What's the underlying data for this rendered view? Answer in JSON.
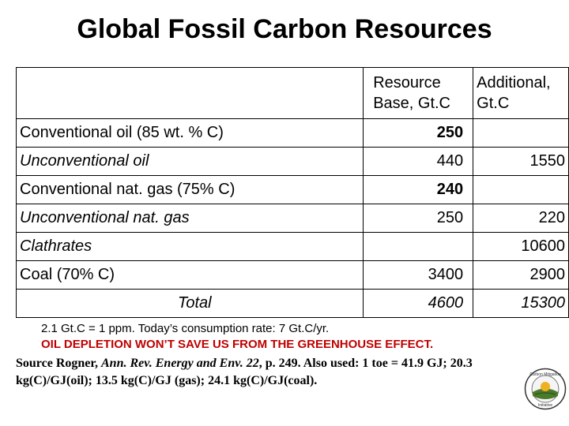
{
  "title": "Global Fossil Carbon Resources",
  "table": {
    "header": {
      "col1": "Resource\nBase, Gt.C",
      "col2": "Additional,\nGt.C"
    },
    "rows": [
      {
        "label": "Conventional oil (85 wt. % C)",
        "base": "250",
        "additional": ""
      },
      {
        "label": "Unconventional oil",
        "base": "440",
        "additional": "1550"
      },
      {
        "label": "Conventional nat. gas (75% C)",
        "base": "240",
        "additional": ""
      },
      {
        "label": "Unconventional nat. gas",
        "base": "250",
        "additional": "220"
      },
      {
        "label": "Clathrates",
        "base": "",
        "additional": "10600"
      },
      {
        "label": "Coal (70% C)",
        "base": "3400",
        "additional": "2900"
      }
    ],
    "total": {
      "label": "Total",
      "base": "4600",
      "additional": "15300"
    }
  },
  "note": {
    "line1": "2.1 Gt.C = 1 ppm. Today’s consumption rate: 7 Gt.C/yr.",
    "line2": "OIL DEPLETION WON’T SAVE US FROM THE GREENHOUSE EFFECT."
  },
  "source": {
    "prefix": "Source Rogner, ",
    "journal": "Ann. Rev. Energy and Env. 22",
    "suffix": ", p. 249. Also used: 1 toe = 41.9 GJ; 20.3 kg(C)/GJ(oil); 13.5 kg(C)/GJ (gas); 24.1 kg(C)/GJ(coal)."
  },
  "logo": {
    "icon": "carbon-sequestration-logo",
    "text_top": "Carbon Mitigation",
    "text_bottom": "Initiative"
  }
}
